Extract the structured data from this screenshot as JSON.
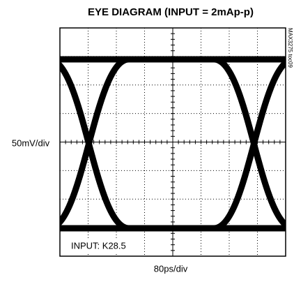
{
  "chart_data": {
    "type": "eye",
    "title": "EYE DIAGRAM (INPUT = 2mAp-p)",
    "x_label": "80ps/div",
    "y_label": "50mV/div",
    "annotation": "INPUT: K28.5",
    "note": "MAX3275 toc09"
  }
}
